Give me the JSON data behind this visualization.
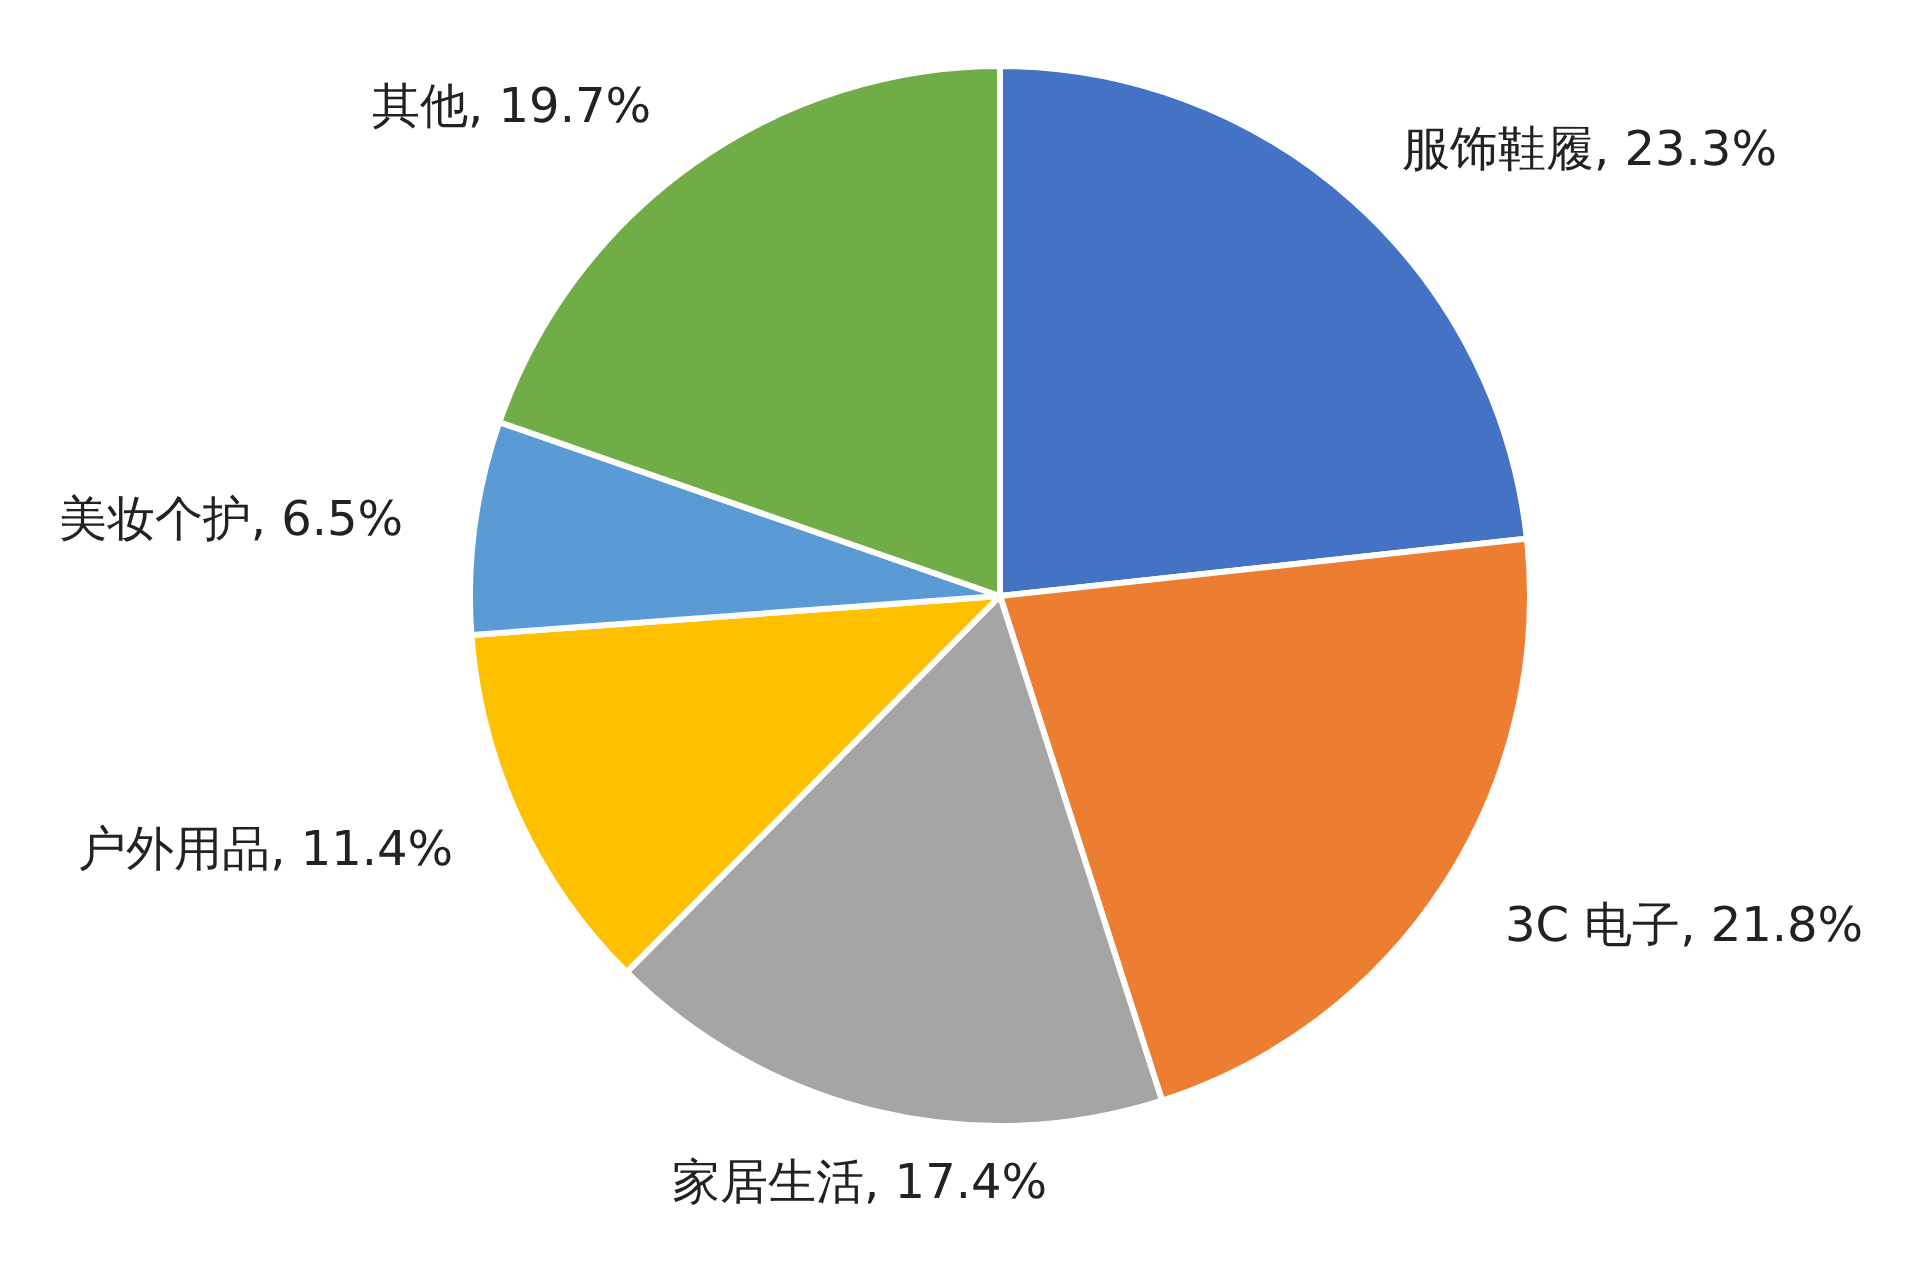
{
  "chart_data": {
    "type": "pie",
    "categories": [
      "服饰鞋履",
      "3C 电子",
      "家居生活",
      "户外用品",
      "美妆个护",
      "其他"
    ],
    "values": [
      23.3,
      21.8,
      17.4,
      11.4,
      6.5,
      19.7
    ],
    "value_labels": [
      "23.3%",
      "21.8%",
      "17.4%",
      "11.4%",
      "6.5%",
      "19.7%"
    ],
    "colors": [
      "#4472c4",
      "#ed7d31",
      "#a5a5a5",
      "#ffc000",
      "#5b9bd5",
      "#70ad47"
    ]
  }
}
